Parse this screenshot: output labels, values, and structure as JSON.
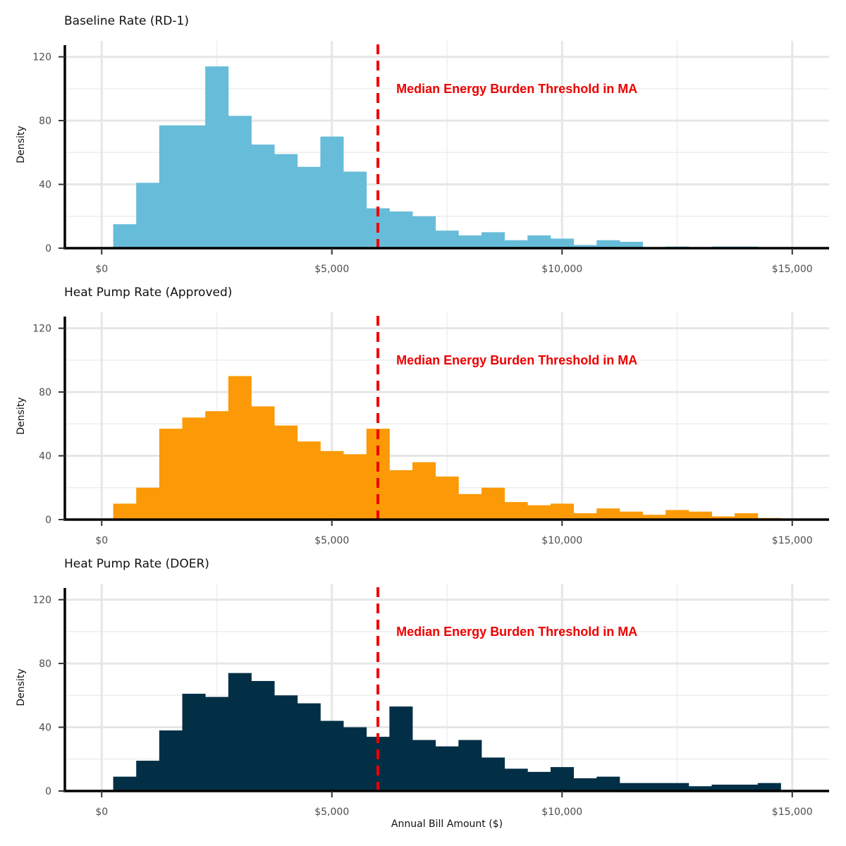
{
  "figure": {
    "xlabel": "Annual Bill Amount ($)",
    "ylabel": "Density",
    "annotation_color": "#ee0000",
    "threshold_line_color": "#ee0000"
  },
  "chart_data": [
    {
      "type": "bar",
      "title": "Baseline Rate (RD-1)",
      "color": "#67bcd9",
      "bin_width": 500,
      "x": [
        500,
        1000,
        1500,
        2000,
        2500,
        3000,
        3500,
        4000,
        4500,
        5000,
        5500,
        6000,
        6500,
        7000,
        7500,
        8000,
        8500,
        9000,
        9500,
        10000,
        10500,
        11000,
        11500,
        12000,
        12500,
        13000,
        13500,
        14000,
        14500
      ],
      "values": [
        15,
        41,
        77,
        77,
        114,
        83,
        65,
        59,
        51,
        70,
        48,
        25,
        23,
        20,
        11,
        8,
        10,
        5,
        8,
        6,
        2,
        5,
        4,
        0,
        1,
        0,
        1,
        1,
        0
      ],
      "xlim": [
        -800,
        15800
      ],
      "ylim": [
        0,
        130
      ],
      "x_ticks": [
        0,
        5000,
        10000,
        15000
      ],
      "x_tick_labels": [
        "$0",
        "$5,000",
        "$10,000",
        "$15,000"
      ],
      "y_ticks": [
        0,
        40,
        80,
        120
      ],
      "y_tick_labels": [
        "0",
        "40",
        "80",
        "120"
      ],
      "vline_x": 6000,
      "annotation": {
        "text": "Median Energy Burden Threshold in MA",
        "x": 6400,
        "y": 100
      }
    },
    {
      "type": "bar",
      "title": "Heat Pump Rate (Approved)",
      "color": "#fb9a06",
      "bin_width": 500,
      "x": [
        500,
        1000,
        1500,
        2000,
        2500,
        3000,
        3500,
        4000,
        4500,
        5000,
        5500,
        6000,
        6500,
        7000,
        7500,
        8000,
        8500,
        9000,
        9500,
        10000,
        10500,
        11000,
        11500,
        12000,
        12500,
        13000,
        13500,
        14000,
        14500
      ],
      "values": [
        10,
        20,
        57,
        64,
        68,
        90,
        71,
        59,
        49,
        43,
        41,
        57,
        31,
        36,
        27,
        16,
        20,
        11,
        9,
        10,
        4,
        7,
        5,
        3,
        6,
        5,
        2,
        4,
        1
      ],
      "xlim": [
        -800,
        15800
      ],
      "ylim": [
        0,
        130
      ],
      "x_ticks": [
        0,
        5000,
        10000,
        15000
      ],
      "x_tick_labels": [
        "$0",
        "$5,000",
        "$10,000",
        "$15,000"
      ],
      "y_ticks": [
        0,
        40,
        80,
        120
      ],
      "y_tick_labels": [
        "0",
        "40",
        "80",
        "120"
      ],
      "vline_x": 6000,
      "annotation": {
        "text": "Median Energy Burden Threshold in MA",
        "x": 6400,
        "y": 100
      }
    },
    {
      "type": "bar",
      "title": "Heat Pump Rate (DOER)",
      "color": "#022f46",
      "bin_width": 500,
      "x": [
        500,
        1000,
        1500,
        2000,
        2500,
        3000,
        3500,
        4000,
        4500,
        5000,
        5500,
        6000,
        6500,
        7000,
        7500,
        8000,
        8500,
        9000,
        9500,
        10000,
        10500,
        11000,
        11500,
        12000,
        12500,
        13000,
        13500,
        14000,
        14500
      ],
      "values": [
        9,
        19,
        38,
        61,
        59,
        74,
        69,
        60,
        55,
        44,
        40,
        34,
        53,
        32,
        28,
        32,
        21,
        14,
        12,
        15,
        8,
        9,
        5,
        5,
        5,
        3,
        4,
        4,
        5
      ],
      "xlim": [
        -800,
        15800
      ],
      "ylim": [
        0,
        130
      ],
      "x_ticks": [
        0,
        5000,
        10000,
        15000
      ],
      "x_tick_labels": [
        "$0",
        "$5,000",
        "$10,000",
        "$15,000"
      ],
      "y_ticks": [
        0,
        40,
        80,
        120
      ],
      "y_tick_labels": [
        "0",
        "40",
        "80",
        "120"
      ],
      "vline_x": 6000,
      "annotation": {
        "text": "Median Energy Burden Threshold in MA",
        "x": 6400,
        "y": 100
      }
    }
  ]
}
